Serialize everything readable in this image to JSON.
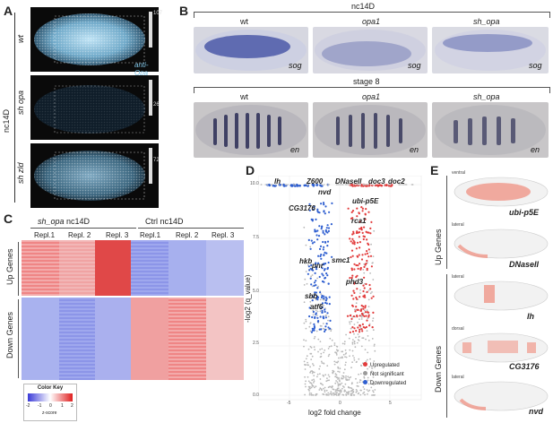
{
  "panels": {
    "A": {
      "label": "A",
      "group_label": "nc14D",
      "rows": [
        {
          "name": "wt",
          "scale_max": "107",
          "stain": "anti-Opa"
        },
        {
          "name": "sh opa",
          "scale_max": "26"
        },
        {
          "name": "sh zld",
          "scale_max": "72"
        }
      ]
    },
    "B": {
      "label": "B",
      "top_stage": "nc14D",
      "bottom_stage": "stage 8",
      "columns": [
        "wt",
        "opa1",
        "sh_opa"
      ],
      "top_gene": "sog",
      "bottom_gene": "en"
    },
    "C": {
      "label": "C",
      "group1": "sh_opa nc14D",
      "group1_prefix": "sh_opa",
      "group1_suffix": " nc14D",
      "group2": "Ctrl nc14D",
      "columns": [
        "Repl.1",
        "Repl. 2",
        "Repl. 3",
        "Repl.1",
        "Repl. 2",
        "Repl. 3"
      ],
      "row_groups": [
        "Up Genes",
        "Down Genes"
      ],
      "color_key": {
        "title": "Color Key",
        "ticks": [
          "-2",
          "-1",
          "0",
          "1",
          "2"
        ],
        "unit": "z-score"
      }
    },
    "D": {
      "label": "D",
      "ylabel": "-log2 (q_value)",
      "xlabel": "log2 fold change",
      "yticks": [
        "0.0",
        "2.5",
        "5.0",
        "7.5",
        "10.0"
      ],
      "xticks": [
        "-5",
        "0",
        "5"
      ],
      "gene_labels": [
        "lh",
        "Z600",
        "nvd",
        "DNaseII",
        "doc3",
        "doc2",
        "ubi-p5E",
        "CG3176",
        "rca1",
        "hkb",
        "pnr",
        "smc1",
        "phd3",
        "sbb",
        "atf6"
      ],
      "legend": [
        {
          "name": "Upregulated",
          "color": "#e23b3b"
        },
        {
          "name": "Not significant",
          "color": "#9a9a9a"
        },
        {
          "name": "Downregulated",
          "color": "#2f5fd0"
        }
      ]
    },
    "E": {
      "label": "E",
      "group_up": "Up Genes",
      "group_down": "Down Genes",
      "embryos": [
        {
          "view": "ventral",
          "gene": "ubi-p5E"
        },
        {
          "view": "lateral",
          "gene": "DNaseII"
        },
        {
          "view": "lateral",
          "gene": "lh"
        },
        {
          "view": "dorsal",
          "gene": "CG3176"
        },
        {
          "view": "lateral",
          "gene": "nvd"
        }
      ]
    }
  }
}
